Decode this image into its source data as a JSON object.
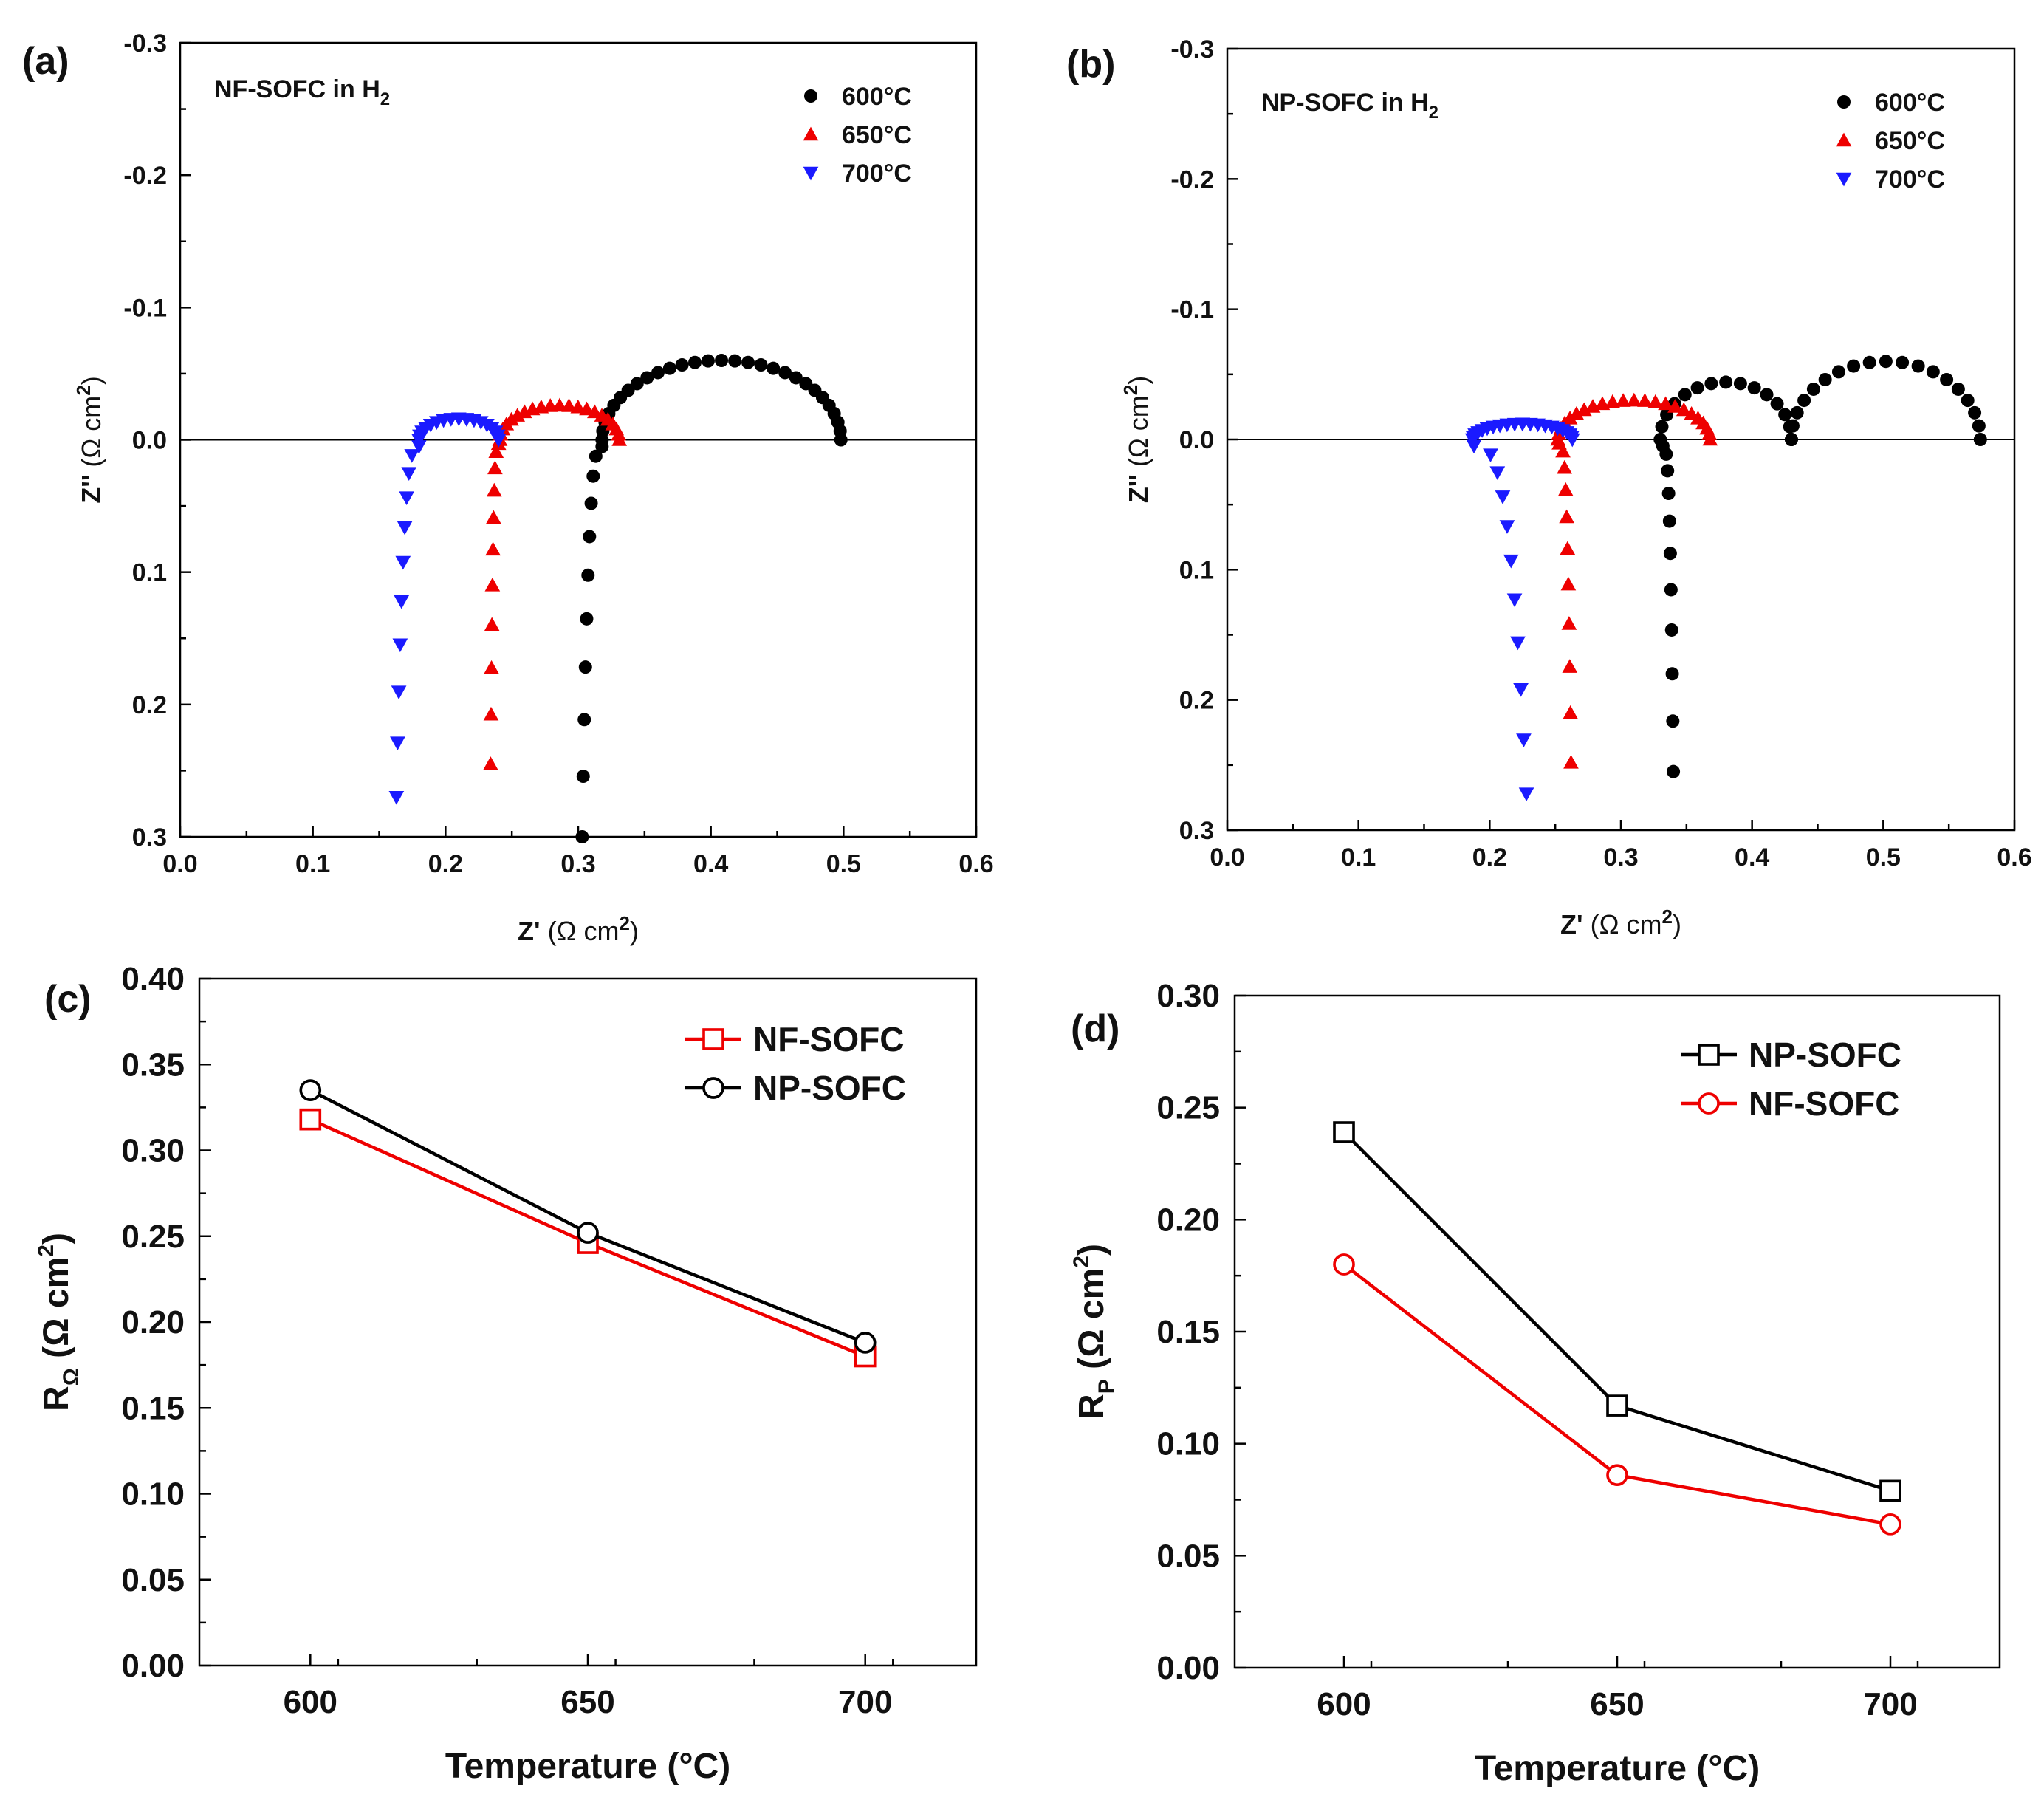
{
  "chart_data": [
    {
      "id": "a",
      "type": "scatter",
      "panel_label": "(a)",
      "title": "NF-SOFC in H",
      "title_sub": "2",
      "xlabel": "Z'",
      "xunit": "(Ω cm",
      "xunit_sup": "2",
      "xunit_end": ")",
      "ylabel": "Z''",
      "yunit": "(Ω cm",
      "yunit_sup": "2",
      "yunit_end": ")",
      "xlim": [
        0.0,
        0.6
      ],
      "ylim_top": -0.3,
      "ylim_bottom": 0.3,
      "x_ticks": [
        "0.0",
        "0.1",
        "0.2",
        "0.3",
        "0.4",
        "0.5",
        "0.6"
      ],
      "y_ticks": [
        "-0.3",
        "-0.2",
        "-0.1",
        "0.0",
        "0.1",
        "0.2",
        "0.3"
      ],
      "series": [
        {
          "name": "600°C",
          "color": "#000000",
          "marker": "circle",
          "tail": {
            "x0": 0.318,
            "x1": 0.303,
            "y0": 0.005,
            "y1": 0.3
          },
          "arcs": [
            {
              "center": 0.408,
              "r": 0.09,
              "h": 0.06,
              "n": 28
            }
          ]
        },
        {
          "name": "650°C",
          "color": "#ee0000",
          "marker": "triangle-up",
          "tail": {
            "x0": 0.24,
            "x1": 0.234,
            "y0": 0.003,
            "y1": 0.245
          },
          "arcs": [
            {
              "center": 0.286,
              "r": 0.045,
              "h": 0.026,
              "n": 20
            }
          ]
        },
        {
          "name": "700°C",
          "color": "#1a1aff",
          "marker": "triangle-down",
          "tail": {
            "x0": 0.18,
            "x1": 0.163,
            "y0": 0.005,
            "y1": 0.27
          },
          "arcs": [
            {
              "center": 0.21,
              "r": 0.03,
              "h": 0.016,
              "n": 16
            }
          ]
        }
      ]
    },
    {
      "id": "b",
      "type": "scatter",
      "panel_label": "(b)",
      "title": "NP-SOFC in H",
      "title_sub": "2",
      "xlabel": "Z'",
      "xunit": "(Ω cm",
      "xunit_sup": "2",
      "xunit_end": ")",
      "ylabel": "Z''",
      "yunit": "(Ω cm",
      "yunit_sup": "2",
      "yunit_end": ")",
      "xlim": [
        0.0,
        0.6
      ],
      "ylim_top": -0.3,
      "ylim_bottom": 0.3,
      "x_ticks": [
        "0.0",
        "0.1",
        "0.2",
        "0.3",
        "0.4",
        "0.5",
        "0.6"
      ],
      "y_ticks": [
        "-0.3",
        "-0.2",
        "-0.1",
        "0.0",
        "0.1",
        "0.2",
        "0.3"
      ],
      "series": [
        {
          "name": "600°C",
          "color": "#000000",
          "marker": "circle",
          "tail": {
            "x0": 0.332,
            "x1": 0.34,
            "y0": 0.005,
            "y1": 0.255
          },
          "arcs": [
            {
              "center": 0.38,
              "r": 0.05,
              "h": 0.044,
              "n": 14
            },
            {
              "center": 0.502,
              "r": 0.072,
              "h": 0.06,
              "n": 18
            }
          ]
        },
        {
          "name": "650°C",
          "color": "#ee0000",
          "marker": "triangle-up",
          "tail": {
            "x0": 0.253,
            "x1": 0.262,
            "y0": 0.003,
            "y1": 0.248
          },
          "arcs": [
            {
              "center": 0.31,
              "r": 0.058,
              "h": 0.03,
              "n": 22
            }
          ]
        },
        {
          "name": "700°C",
          "color": "#1a1aff",
          "marker": "triangle-down",
          "tail": {
            "x0": 0.188,
            "x1": 0.228,
            "y0": 0.005,
            "y1": 0.272
          },
          "arcs": [
            {
              "center": 0.225,
              "r": 0.038,
              "h": 0.012,
              "n": 20
            }
          ]
        }
      ]
    },
    {
      "id": "c",
      "type": "line",
      "panel_label": "(c)",
      "xlabel": "Temperature (°C)",
      "ylabel": "R",
      "ylabel_sub": "Ω",
      "yunit": "(Ω cm",
      "yunit_sup": "2",
      "yunit_end": ")",
      "x": [
        600,
        650,
        700
      ],
      "x_ticks": [
        "600",
        "650",
        "700"
      ],
      "xlim": [
        580,
        720
      ],
      "ylim": [
        0.0,
        0.4
      ],
      "y_ticks": [
        "0.00",
        "0.05",
        "0.10",
        "0.15",
        "0.20",
        "0.25",
        "0.30",
        "0.35",
        "0.40"
      ],
      "series": [
        {
          "name": "NF-SOFC",
          "color": "#ee0000",
          "marker": "square",
          "values": [
            0.318,
            0.246,
            0.18
          ]
        },
        {
          "name": "NP-SOFC",
          "color": "#000000",
          "marker": "circle",
          "values": [
            0.335,
            0.252,
            0.188
          ]
        }
      ]
    },
    {
      "id": "d",
      "type": "line",
      "panel_label": "(d)",
      "xlabel": "Temperature (°C)",
      "ylabel": "R",
      "ylabel_sub": "P",
      "yunit": "(Ω cm",
      "yunit_sup": "2",
      "yunit_end": ")",
      "x": [
        600,
        650,
        700
      ],
      "x_ticks": [
        "600",
        "650",
        "700"
      ],
      "xlim": [
        580,
        720
      ],
      "ylim": [
        0.0,
        0.3
      ],
      "y_ticks": [
        "0.00",
        "0.05",
        "0.10",
        "0.15",
        "0.20",
        "0.25",
        "0.30"
      ],
      "series": [
        {
          "name": "NP-SOFC",
          "color": "#000000",
          "marker": "square",
          "values": [
            0.239,
            0.117,
            0.079
          ]
        },
        {
          "name": "NF-SOFC",
          "color": "#ee0000",
          "marker": "circle",
          "values": [
            0.18,
            0.086,
            0.064
          ]
        }
      ]
    }
  ]
}
